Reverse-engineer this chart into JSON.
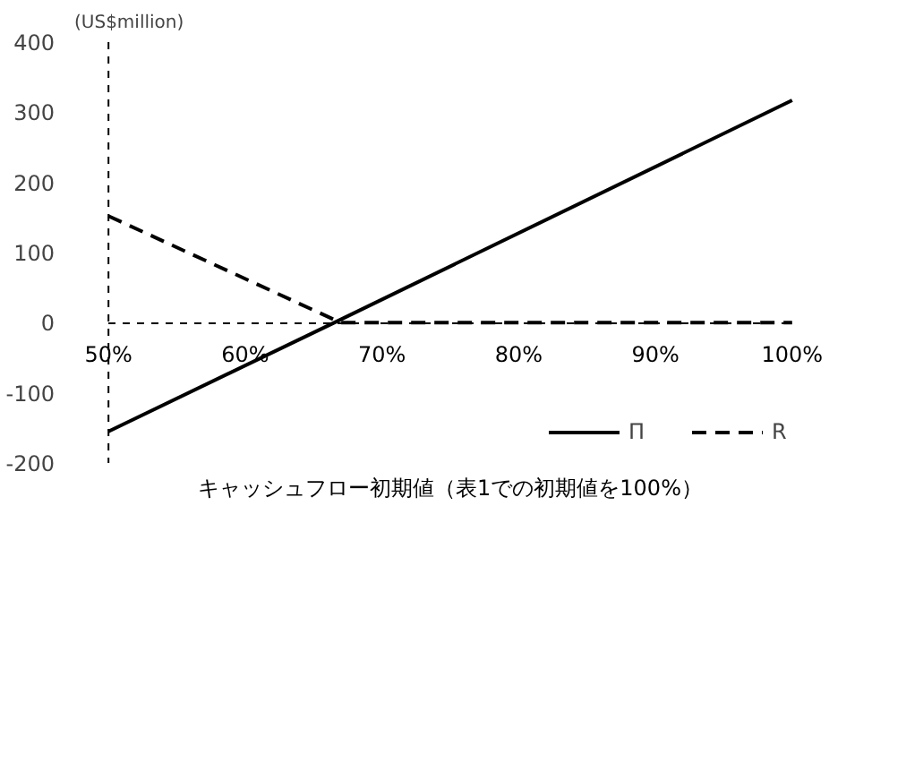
{
  "chart_data": {
    "type": "line",
    "ylabel": "(US$million)",
    "xlabel": "キャッシュフロー初期値（表1での初期値を100%）",
    "xlim": [
      50,
      100
    ],
    "ylim": [
      -200,
      400
    ],
    "xticks": [
      {
        "value": 50,
        "label": "50%"
      },
      {
        "value": 60,
        "label": "60%"
      },
      {
        "value": 70,
        "label": "70%"
      },
      {
        "value": 80,
        "label": "80%"
      },
      {
        "value": 90,
        "label": "90%"
      },
      {
        "value": 100,
        "label": "100%"
      }
    ],
    "yticks": [
      -200,
      -100,
      0,
      100,
      200,
      300,
      400
    ],
    "legend": "bottom right",
    "series": [
      {
        "name": "Π",
        "color": "#000000",
        "line_style": "solid",
        "x": [
          50,
          66.5,
          100
        ],
        "values": [
          -155,
          0,
          317
        ]
      },
      {
        "name": "R",
        "color": "#000000",
        "line_style": "dashed",
        "x": [
          50,
          67,
          100
        ],
        "values": [
          152,
          0,
          0
        ]
      }
    ]
  }
}
